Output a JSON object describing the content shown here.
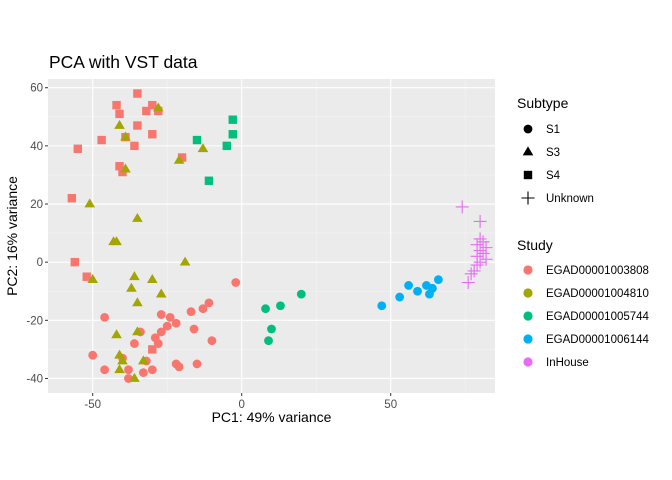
{
  "chart_data": {
    "type": "scatter",
    "title": "PCA with VST data",
    "xlabel": "PC1: 49% variance",
    "ylabel": "PC2: 16% variance",
    "xlim": [
      -65,
      85
    ],
    "ylim": [
      -45,
      63
    ],
    "x_ticks": [
      -50,
      0,
      50
    ],
    "y_ticks": [
      -40,
      -20,
      0,
      20,
      40,
      60
    ],
    "grid": true,
    "legend_position": "right",
    "shape_legend": {
      "title": "Subtype",
      "entries": [
        {
          "label": "S1",
          "shape": "circle"
        },
        {
          "label": "S3",
          "shape": "triangle"
        },
        {
          "label": "S4",
          "shape": "square"
        },
        {
          "label": "Unknown",
          "shape": "cross"
        }
      ]
    },
    "color_legend": {
      "title": "Study",
      "entries": [
        {
          "label": "EGAD00001003808",
          "color": "#F8766D"
        },
        {
          "label": "EGAD00001004810",
          "color": "#A3A500"
        },
        {
          "label": "EGAD00001005744",
          "color": "#00BF7D"
        },
        {
          "label": "EGAD00001006144",
          "color": "#00B0F6"
        },
        {
          "label": "InHouse",
          "color": "#E76BF3"
        }
      ]
    },
    "series": [
      {
        "name": "EGAD00001003808",
        "color": "#F8766D",
        "points": [
          {
            "x": -42,
            "y": 54,
            "shape": "square"
          },
          {
            "x": -35,
            "y": 58,
            "shape": "square"
          },
          {
            "x": -41,
            "y": 51,
            "shape": "square"
          },
          {
            "x": -32,
            "y": 52,
            "shape": "square"
          },
          {
            "x": -30,
            "y": 54,
            "shape": "square"
          },
          {
            "x": -28,
            "y": 52,
            "shape": "square"
          },
          {
            "x": -35,
            "y": 47,
            "shape": "square"
          },
          {
            "x": -30,
            "y": 44,
            "shape": "square"
          },
          {
            "x": -47,
            "y": 42,
            "shape": "square"
          },
          {
            "x": -39,
            "y": 43,
            "shape": "square"
          },
          {
            "x": -36,
            "y": 40,
            "shape": "square"
          },
          {
            "x": -55,
            "y": 39,
            "shape": "square"
          },
          {
            "x": -20,
            "y": 36,
            "shape": "square"
          },
          {
            "x": -41,
            "y": 33,
            "shape": "square"
          },
          {
            "x": -40,
            "y": 31,
            "shape": "square"
          },
          {
            "x": -57,
            "y": 22,
            "shape": "square"
          },
          {
            "x": -56,
            "y": 0,
            "shape": "square"
          },
          {
            "x": -52,
            "y": -5,
            "shape": "square"
          },
          {
            "x": -27,
            "y": -18,
            "shape": "circle"
          },
          {
            "x": -17,
            "y": -17,
            "shape": "circle"
          },
          {
            "x": -24,
            "y": -19,
            "shape": "circle"
          },
          {
            "x": -13,
            "y": -16,
            "shape": "circle"
          },
          {
            "x": -11,
            "y": -14,
            "shape": "circle"
          },
          {
            "x": -2,
            "y": -7,
            "shape": "circle"
          },
          {
            "x": -22,
            "y": -21,
            "shape": "circle"
          },
          {
            "x": -25,
            "y": -22,
            "shape": "circle"
          },
          {
            "x": -27,
            "y": -24,
            "shape": "circle"
          },
          {
            "x": -29,
            "y": -26,
            "shape": "circle"
          },
          {
            "x": -16,
            "y": -23,
            "shape": "circle"
          },
          {
            "x": -34,
            "y": -24,
            "shape": "circle"
          },
          {
            "x": -10,
            "y": -27,
            "shape": "circle"
          },
          {
            "x": -36,
            "y": -28,
            "shape": "circle"
          },
          {
            "x": -46,
            "y": -19,
            "shape": "circle"
          },
          {
            "x": -40,
            "y": -33,
            "shape": "circle"
          },
          {
            "x": -28,
            "y": -28,
            "shape": "circle"
          },
          {
            "x": -30,
            "y": -30,
            "shape": "square"
          },
          {
            "x": -32,
            "y": -34,
            "shape": "circle"
          },
          {
            "x": -22,
            "y": -35,
            "shape": "circle"
          },
          {
            "x": -21,
            "y": -36,
            "shape": "circle"
          },
          {
            "x": -15,
            "y": -35,
            "shape": "circle"
          },
          {
            "x": -30,
            "y": -37,
            "shape": "circle"
          },
          {
            "x": -33,
            "y": -38,
            "shape": "circle"
          },
          {
            "x": -38,
            "y": -37,
            "shape": "circle"
          },
          {
            "x": -50,
            "y": -32,
            "shape": "circle"
          },
          {
            "x": -46,
            "y": -37,
            "shape": "circle"
          },
          {
            "x": -38,
            "y": -40,
            "shape": "circle"
          }
        ]
      },
      {
        "name": "EGAD00001004810",
        "color": "#A3A500",
        "points": [
          {
            "x": -41,
            "y": 47,
            "shape": "triangle"
          },
          {
            "x": -28,
            "y": 53,
            "shape": "triangle"
          },
          {
            "x": -39,
            "y": 43,
            "shape": "triangle"
          },
          {
            "x": -13,
            "y": 39,
            "shape": "triangle"
          },
          {
            "x": -21,
            "y": 35,
            "shape": "triangle"
          },
          {
            "x": -39,
            "y": 32,
            "shape": "triangle"
          },
          {
            "x": -51,
            "y": 20,
            "shape": "triangle"
          },
          {
            "x": -35,
            "y": 15,
            "shape": "triangle"
          },
          {
            "x": -43,
            "y": 7,
            "shape": "triangle"
          },
          {
            "x": -42,
            "y": 7,
            "shape": "triangle"
          },
          {
            "x": -19,
            "y": 0,
            "shape": "triangle"
          },
          {
            "x": -36,
            "y": -5,
            "shape": "triangle"
          },
          {
            "x": -30,
            "y": -6,
            "shape": "triangle"
          },
          {
            "x": -50,
            "y": -6,
            "shape": "triangle"
          },
          {
            "x": -37,
            "y": -9,
            "shape": "triangle"
          },
          {
            "x": -27,
            "y": -11,
            "shape": "triangle"
          },
          {
            "x": -35,
            "y": -14,
            "shape": "triangle"
          },
          {
            "x": -42,
            "y": -25,
            "shape": "triangle"
          },
          {
            "x": -35,
            "y": -24,
            "shape": "triangle"
          },
          {
            "x": -41,
            "y": -32,
            "shape": "triangle"
          },
          {
            "x": -40,
            "y": -34,
            "shape": "triangle"
          },
          {
            "x": -33,
            "y": -34,
            "shape": "triangle"
          },
          {
            "x": -41,
            "y": -37,
            "shape": "triangle"
          },
          {
            "x": -36,
            "y": -40,
            "shape": "triangle"
          }
        ]
      },
      {
        "name": "EGAD00001005744",
        "color": "#00BF7D",
        "points": [
          {
            "x": -3,
            "y": 49,
            "shape": "square"
          },
          {
            "x": -3,
            "y": 44,
            "shape": "square"
          },
          {
            "x": -15,
            "y": 42,
            "shape": "square"
          },
          {
            "x": -5,
            "y": 40,
            "shape": "square"
          },
          {
            "x": -11,
            "y": 28,
            "shape": "square"
          },
          {
            "x": 20,
            "y": -11,
            "shape": "circle"
          },
          {
            "x": 13,
            "y": -15,
            "shape": "circle"
          },
          {
            "x": 8,
            "y": -16,
            "shape": "circle"
          },
          {
            "x": 10,
            "y": -23,
            "shape": "circle"
          },
          {
            "x": 9,
            "y": -27,
            "shape": "circle"
          }
        ]
      },
      {
        "name": "EGAD00001006144",
        "color": "#00B0F6",
        "points": [
          {
            "x": 66,
            "y": -6,
            "shape": "circle"
          },
          {
            "x": 56,
            "y": -8,
            "shape": "circle"
          },
          {
            "x": 62,
            "y": -8,
            "shape": "circle"
          },
          {
            "x": 59,
            "y": -10,
            "shape": "circle"
          },
          {
            "x": 64,
            "y": -9,
            "shape": "circle"
          },
          {
            "x": 63,
            "y": -11,
            "shape": "circle"
          },
          {
            "x": 53,
            "y": -12,
            "shape": "circle"
          },
          {
            "x": 47,
            "y": -15,
            "shape": "circle"
          }
        ]
      },
      {
        "name": "InHouse",
        "color": "#E76BF3",
        "points": [
          {
            "x": 74,
            "y": 19,
            "shape": "cross"
          },
          {
            "x": 80,
            "y": 14,
            "shape": "cross"
          },
          {
            "x": 80,
            "y": 8,
            "shape": "cross"
          },
          {
            "x": 81,
            "y": 7,
            "shape": "cross"
          },
          {
            "x": 79,
            "y": 6,
            "shape": "cross"
          },
          {
            "x": 82,
            "y": 5,
            "shape": "cross"
          },
          {
            "x": 80,
            "y": 4,
            "shape": "cross"
          },
          {
            "x": 81,
            "y": 3,
            "shape": "cross"
          },
          {
            "x": 79,
            "y": 2,
            "shape": "cross"
          },
          {
            "x": 82,
            "y": 1,
            "shape": "cross"
          },
          {
            "x": 80,
            "y": 0,
            "shape": "cross"
          },
          {
            "x": 79,
            "y": -1,
            "shape": "cross"
          },
          {
            "x": 78,
            "y": -3,
            "shape": "cross"
          },
          {
            "x": 77,
            "y": -4,
            "shape": "cross"
          },
          {
            "x": 76,
            "y": -7,
            "shape": "cross"
          }
        ]
      }
    ]
  }
}
